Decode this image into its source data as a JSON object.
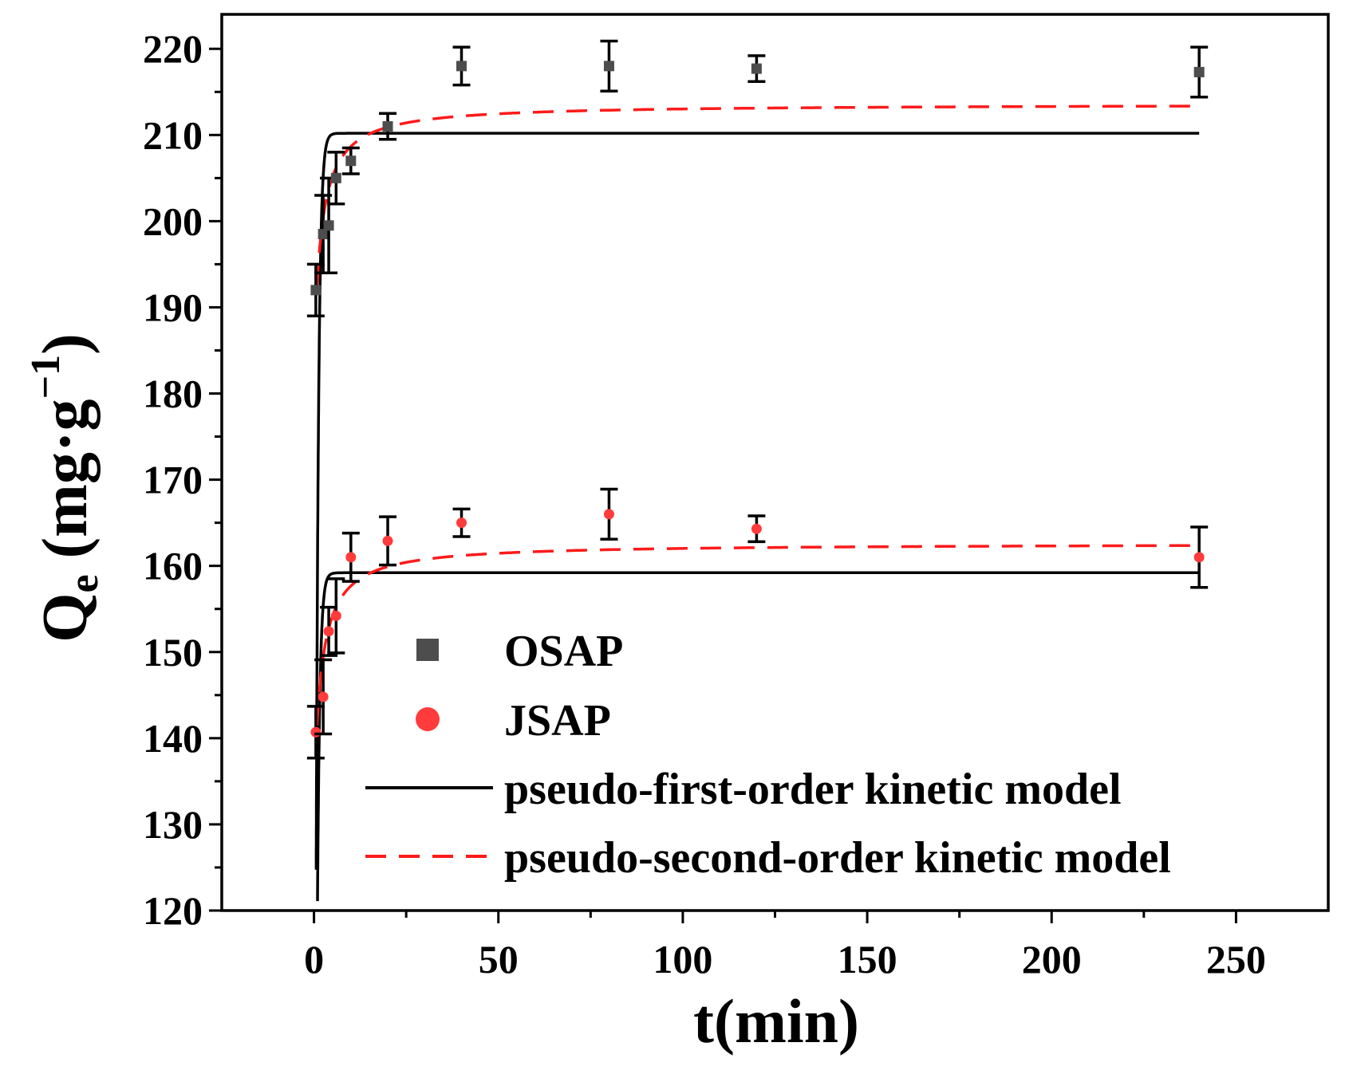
{
  "chart_data": {
    "type": "scatter",
    "title": "",
    "xlabel": "t(min)",
    "ylabel_main": "Q",
    "ylabel_sub": "e",
    "ylabel_units": "(mg·g",
    "ylabel_exp": "−1",
    "ylabel_close": ")",
    "xlim": [
      -25,
      275
    ],
    "ylim": [
      120,
      224
    ],
    "x_ticks": [
      0,
      50,
      100,
      150,
      200,
      250
    ],
    "y_ticks": [
      120,
      130,
      140,
      150,
      160,
      170,
      180,
      190,
      200,
      210,
      220
    ],
    "series": [
      {
        "name": "OSAP",
        "marker": "square",
        "color": "#4d4d4d",
        "points": [
          {
            "x": 0.5,
            "y": 192,
            "err": 3
          },
          {
            "x": 2.5,
            "y": 198.5,
            "err": 4.5
          },
          {
            "x": 4,
            "y": 199.5,
            "err": 5.5
          },
          {
            "x": 6,
            "y": 205,
            "err": 3
          },
          {
            "x": 10,
            "y": 207,
            "err": 1.5
          },
          {
            "x": 20,
            "y": 211,
            "err": 1.5
          },
          {
            "x": 40,
            "y": 218,
            "err": 2.2
          },
          {
            "x": 80,
            "y": 218,
            "err": 2.9
          },
          {
            "x": 120,
            "y": 217.7,
            "err": 1.5
          },
          {
            "x": 240,
            "y": 217.3,
            "err": 2.9
          }
        ]
      },
      {
        "name": "JSAP",
        "marker": "circle",
        "color": "#ff3b3b",
        "points": [
          {
            "x": 0.5,
            "y": 140.7,
            "err": 3
          },
          {
            "x": 2.5,
            "y": 144.8,
            "err": 4.3
          },
          {
            "x": 4,
            "y": 152.4,
            "err": 2.8
          },
          {
            "x": 6,
            "y": 154.2,
            "err": 4.3
          },
          {
            "x": 10,
            "y": 161,
            "err": 2.8
          },
          {
            "x": 20,
            "y": 162.9,
            "err": 2.8
          },
          {
            "x": 40,
            "y": 165,
            "err": 1.6
          },
          {
            "x": 80,
            "y": 166,
            "err": 2.9
          },
          {
            "x": 120,
            "y": 164.3,
            "err": 1.5
          },
          {
            "x": 240,
            "y": 161,
            "err": 3.5
          }
        ]
      }
    ],
    "fits": [
      {
        "name": "pseudo-first-order kinetic model",
        "style": "solid",
        "color": "#000000",
        "model": "pfo",
        "qe": 210.2,
        "k": 1.5,
        "group": "OSAP"
      },
      {
        "name": "pseudo-first-order kinetic model",
        "style": "solid",
        "color": "#000000",
        "model": "pfo",
        "qe": 159.2,
        "k": 1.5,
        "group": "JSAP"
      },
      {
        "name": "pseudo-second-order kinetic model",
        "style": "dashed",
        "color": "#ff1a1a",
        "model": "pso_offset",
        "q0": 184,
        "qinf": 213.6,
        "b": 0.5,
        "group": "OSAP"
      },
      {
        "name": "pseudo-second-order kinetic model",
        "style": "dashed",
        "color": "#ff1a1a",
        "model": "pso_offset",
        "q0": 133,
        "qinf": 162.6,
        "b": 0.5,
        "group": "JSAP"
      }
    ],
    "legend": {
      "position": "bottom-right",
      "entries": [
        {
          "label": "OSAP",
          "kind": "square",
          "color": "#4d4d4d"
        },
        {
          "label": "JSAP",
          "kind": "circle",
          "color": "#ff3b3b"
        },
        {
          "label": "pseudo-first-order kinetic model",
          "kind": "solid",
          "color": "#000000"
        },
        {
          "label": "pseudo-second-order kinetic model",
          "kind": "dashed",
          "color": "#ff1a1a"
        }
      ]
    }
  }
}
